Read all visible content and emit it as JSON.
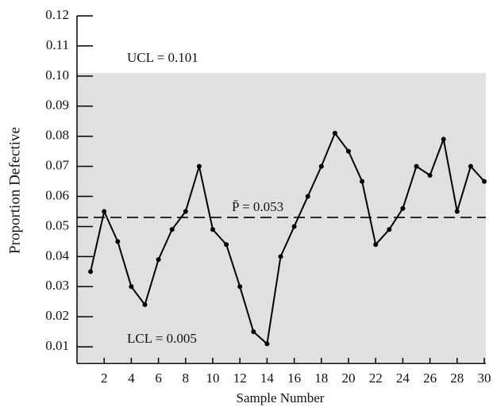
{
  "chart_data": {
    "type": "line",
    "xlabel": "Sample Number",
    "ylabel": "Proportion Defective",
    "x": [
      1,
      2,
      3,
      4,
      5,
      6,
      7,
      8,
      9,
      10,
      11,
      12,
      13,
      14,
      15,
      16,
      17,
      18,
      19,
      20,
      21,
      22,
      23,
      24,
      25,
      26,
      27,
      28,
      29,
      30
    ],
    "series": [
      {
        "color": "#000000",
        "values": [
          0.035,
          0.055,
          0.045,
          0.03,
          0.024,
          0.039,
          0.049,
          0.055,
          0.07,
          0.049,
          0.044,
          0.03,
          0.015,
          0.011,
          0.04,
          0.05,
          0.06,
          0.07,
          0.081,
          0.075,
          0.065,
          0.044,
          0.049,
          0.056,
          0.07,
          0.067,
          0.079,
          0.055,
          0.07,
          0.065
        ]
      }
    ],
    "ucl": 0.101,
    "ucl_label": "UCL = 0.101",
    "lcl": 0.005,
    "lcl_label": "LCL = 0.005",
    "center": 0.053,
    "center_label": "P̄ = 0.053",
    "band_color": "#e0e0e0",
    "xlim": [
      0,
      30
    ],
    "xticks": [
      2,
      4,
      6,
      8,
      10,
      12,
      14,
      16,
      18,
      20,
      22,
      24,
      26,
      28,
      30
    ],
    "ylim": [
      0.0045,
      0.12
    ],
    "yticks": [
      0.01,
      0.02,
      0.03,
      0.04,
      0.05,
      0.06,
      0.07,
      0.08,
      0.09,
      {
        "value": 0.1,
        "label": "0.10"
      },
      0.11,
      0.12
    ]
  }
}
